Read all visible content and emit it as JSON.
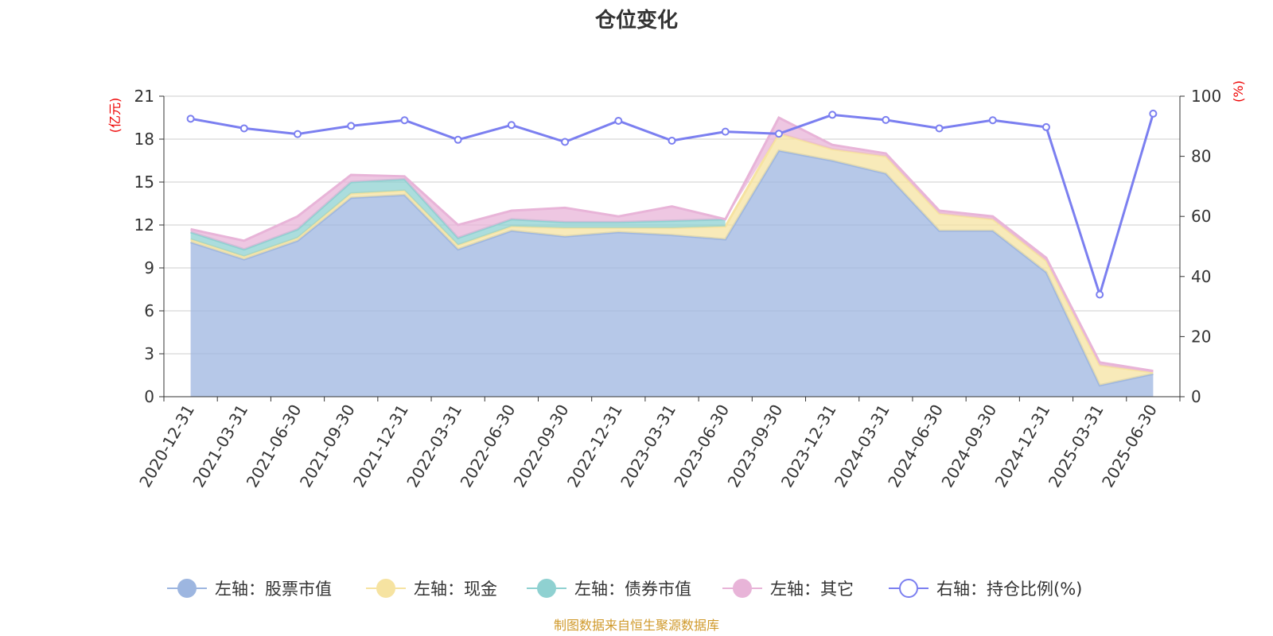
{
  "chart_data": {
    "type": "area",
    "title": "仓位变化",
    "left_unit": "(亿元)",
    "right_unit": "(%)",
    "categories": [
      "2020-12-31",
      "2021-03-31",
      "2021-06-30",
      "2021-09-30",
      "2021-12-31",
      "2022-03-31",
      "2022-06-30",
      "2022-09-30",
      "2022-12-31",
      "2023-03-31",
      "2023-06-30",
      "2023-09-30",
      "2023-12-31",
      "2024-03-31",
      "2024-06-30",
      "2024-09-30",
      "2024-12-31",
      "2025-03-31",
      "2025-06-30"
    ],
    "left_ylim": [
      0,
      21
    ],
    "left_ticks": [
      "0",
      "3",
      "6",
      "9",
      "12",
      "15",
      "18",
      "21"
    ],
    "right_ylim": [
      0,
      100
    ],
    "right_ticks": [
      "0",
      "20",
      "40",
      "60",
      "80",
      "100"
    ],
    "grid": true,
    "legend_position": "bottom",
    "stacked_series": [
      {
        "name": "左轴：股票市值",
        "color": "#9db6e0",
        "values": [
          10.8,
          9.6,
          10.9,
          13.9,
          14.1,
          10.3,
          11.6,
          11.2,
          11.5,
          11.3,
          11.0,
          17.2,
          16.5,
          15.6,
          11.6,
          11.6,
          8.7,
          0.8,
          1.6
        ]
      },
      {
        "name": "左轴：现金",
        "color": "#f6e3a1",
        "values": [
          0.2,
          0.2,
          0.2,
          0.3,
          0.3,
          0.3,
          0.3,
          0.6,
          0.3,
          0.5,
          0.9,
          1.2,
          0.8,
          1.2,
          1.2,
          0.8,
          0.8,
          1.4,
          0.1
        ]
      },
      {
        "name": "左轴：债券市值",
        "color": "#8fd1d1",
        "values": [
          0.5,
          0.5,
          0.6,
          0.8,
          0.8,
          0.5,
          0.5,
          0.4,
          0.4,
          0.5,
          0.5,
          null,
          null,
          null,
          null,
          null,
          null,
          null,
          null
        ]
      },
      {
        "name": "左轴：其它",
        "color": "#e8b4d8",
        "values": [
          0.2,
          0.6,
          0.9,
          0.5,
          0.2,
          0.9,
          0.6,
          1.0,
          0.4,
          1.0,
          0.0,
          1.1,
          0.3,
          0.2,
          0.2,
          0.2,
          0.2,
          0.2,
          0.1
        ]
      }
    ],
    "line_series": {
      "name": "右轴：持仓比例(%)",
      "color": "#7b7ff0",
      "values": [
        92.5,
        89.3,
        87.4,
        90.1,
        92.0,
        85.5,
        90.4,
        84.8,
        91.8,
        85.2,
        88.2,
        87.5,
        93.8,
        92.1,
        89.3,
        92.0,
        89.7,
        34.0,
        94.2
      ]
    },
    "source_note": "制图数据来自恒生聚源数据库"
  }
}
